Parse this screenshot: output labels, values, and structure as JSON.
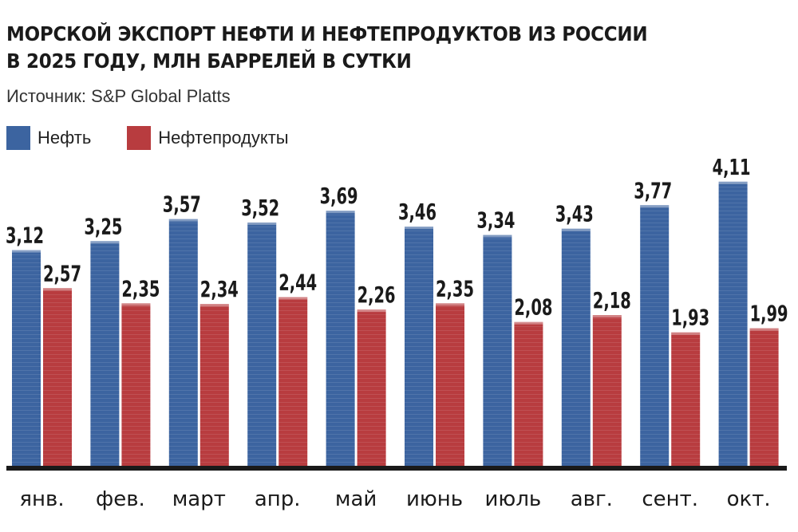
{
  "title_line1": "МОРСКОЙ ЭКСПОРТ НЕФТИ И НЕФТЕПРОДУКТОВ ИЗ РОССИИ",
  "title_line2": "В 2025 ГОДУ, МЛН БАРРЕЛЕЙ В СУТКИ",
  "source": "Источник: S&P Global Platts",
  "colors": {
    "oil": "#3c64a0",
    "products": "#b83c3f",
    "baseline": "#1a1a1a"
  },
  "chart_data": {
    "type": "bar",
    "title": "МОРСКОЙ ЭКСПОРТ НЕФТИ И НЕФТЕПРОДУКТОВ ИЗ РОССИИ В 2025 ГОДУ, МЛН БАРРЕЛЕЙ В СУТКИ",
    "categories": [
      "янв.",
      "фев.",
      "март",
      "апр.",
      "май",
      "июнь",
      "июль",
      "авг.",
      "сент.",
      "окт."
    ],
    "series": [
      {
        "name": "Нефть",
        "values": [
          3.12,
          3.25,
          3.57,
          3.52,
          3.69,
          3.46,
          3.34,
          3.43,
          3.77,
          4.11
        ],
        "labels": [
          "3,12",
          "3,25",
          "3,57",
          "3,52",
          "3,69",
          "3,46",
          "3,34",
          "3,43",
          "3,77",
          "4,11"
        ]
      },
      {
        "name": "Нефтепродукты",
        "values": [
          2.57,
          2.35,
          2.34,
          2.44,
          2.26,
          2.35,
          2.08,
          2.18,
          1.93,
          1.99
        ],
        "labels": [
          "2,57",
          "2,35",
          "2,34",
          "2,44",
          "2,26",
          "2,35",
          "2,08",
          "2,18",
          "1,93",
          "1,99"
        ]
      }
    ],
    "ylim": [
      0,
      4.5
    ],
    "xlabel": "",
    "ylabel": "",
    "grid": false,
    "legend": "top-left"
  }
}
